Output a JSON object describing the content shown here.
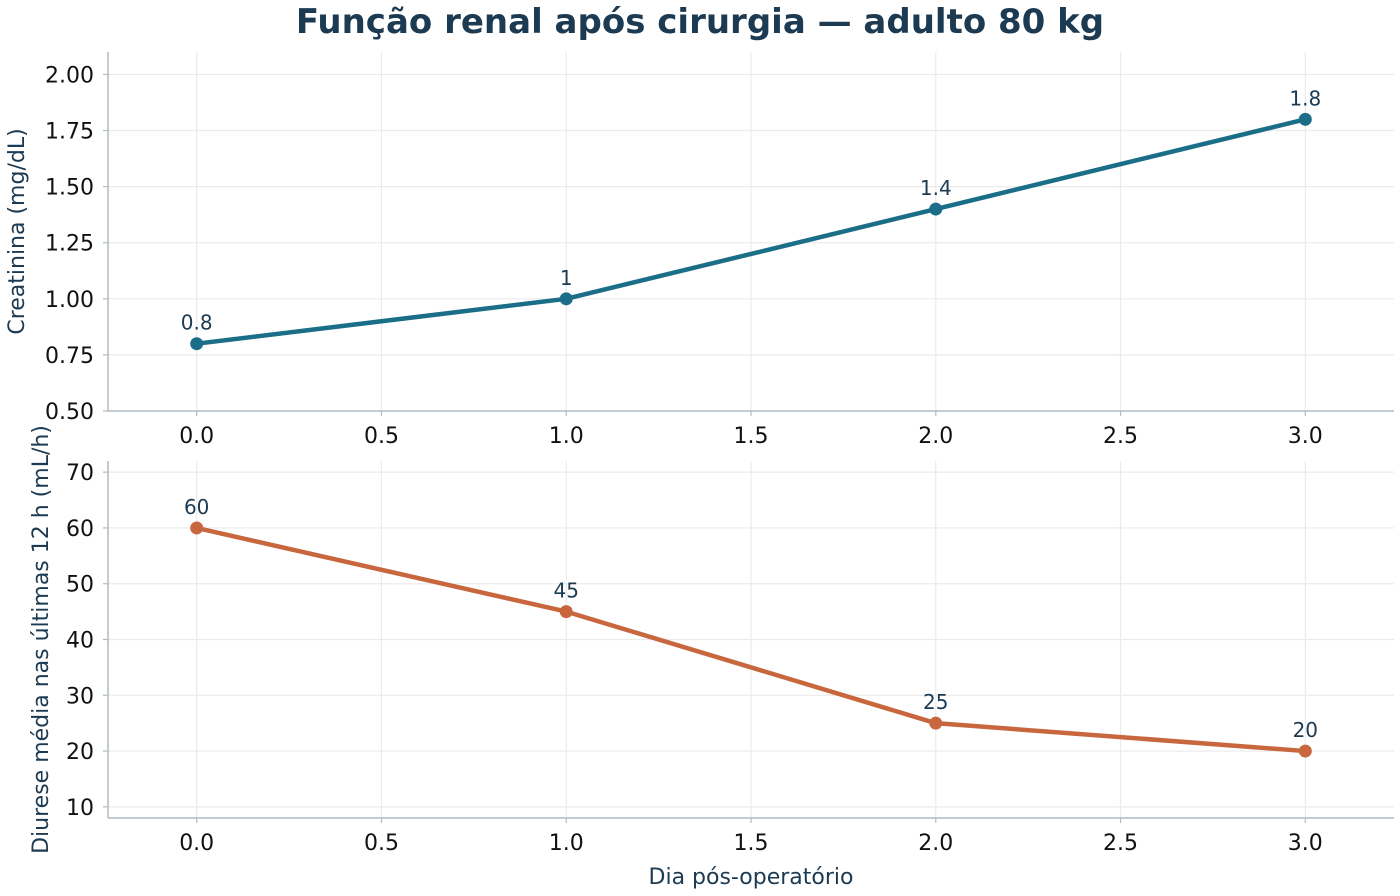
{
  "title": "Função renal após cirurgia — adulto 80 kg",
  "chart_data": [
    {
      "type": "line",
      "ylabel": "Creatinina (mg/dL)",
      "xlabel": "",
      "x": [
        0,
        1,
        2,
        3
      ],
      "series": [
        {
          "values": [
            0.8,
            1.0,
            1.4,
            1.8
          ],
          "labels": [
            "0.8",
            "1",
            "1.4",
            "1.8"
          ],
          "color": "#1b6e87"
        }
      ],
      "xlim": [
        -0.24,
        3.24
      ],
      "ylim": [
        0.5,
        2.1
      ],
      "xticks": [
        "0.0",
        "0.5",
        "1.0",
        "1.5",
        "2.0",
        "2.5",
        "3.0"
      ],
      "yticks": [
        "0.50",
        "0.75",
        "1.00",
        "1.25",
        "1.50",
        "1.75",
        "2.00"
      ],
      "grid": true
    },
    {
      "type": "line",
      "ylabel": "Diurese média nas últimas 12 h (mL/h)",
      "xlabel": "Dia pós-operatório",
      "x": [
        0,
        1,
        2,
        3
      ],
      "series": [
        {
          "values": [
            60,
            45,
            25,
            20
          ],
          "labels": [
            "60",
            "45",
            "25",
            "20"
          ],
          "color": "#c8663e"
        }
      ],
      "xlim": [
        -0.24,
        3.24
      ],
      "ylim": [
        8,
        72
      ],
      "xticks": [
        "0.0",
        "0.5",
        "1.0",
        "1.5",
        "2.0",
        "2.5",
        "3.0"
      ],
      "yticks": [
        "10",
        "20",
        "30",
        "40",
        "50",
        "60",
        "70"
      ],
      "grid": true
    }
  ],
  "colors": {
    "axis": "#b0bcc4",
    "grid": "#ebebeb",
    "text": "#1c3a52"
  }
}
